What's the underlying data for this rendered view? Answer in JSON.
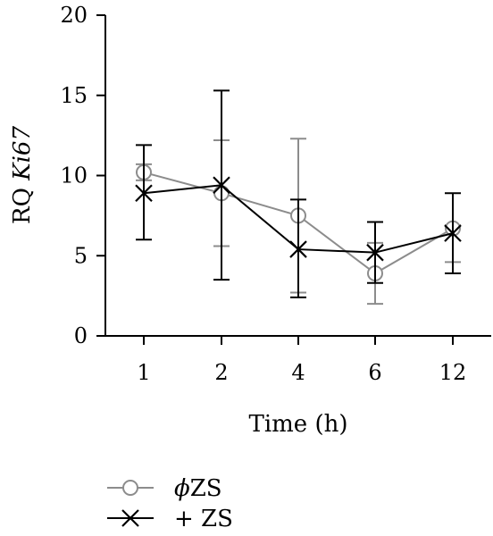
{
  "chart_data": {
    "type": "line",
    "categories": [
      "1",
      "2",
      "4",
      "6",
      "12"
    ],
    "xlabel": "Time (h)",
    "ylabel_plain": "RQ ",
    "ylabel_italic": "Ki67",
    "ylim": [
      0,
      20
    ],
    "yticks": [
      "0",
      "5",
      "10",
      "15",
      "20"
    ],
    "grid": false,
    "legend_position": "bottom-left",
    "series": [
      {
        "name_symbol": "ϕ",
        "name_text": "ZS",
        "marker": "open-circle",
        "color": "#8c8c8c",
        "values": [
          10.2,
          8.9,
          7.5,
          3.9,
          6.7
        ],
        "error_low": [
          9.7,
          5.6,
          2.7,
          2.0,
          4.6
        ],
        "error_high": [
          10.7,
          12.2,
          12.3,
          5.8,
          6.9
        ]
      },
      {
        "name_symbol": "+",
        "name_text": "ZS",
        "marker": "x",
        "color": "#000000",
        "values": [
          8.9,
          9.4,
          5.4,
          5.2,
          6.4
        ],
        "error_low": [
          6.0,
          3.5,
          2.4,
          3.3,
          3.9
        ],
        "error_high": [
          11.9,
          15.3,
          8.5,
          7.1,
          8.9
        ]
      }
    ]
  }
}
